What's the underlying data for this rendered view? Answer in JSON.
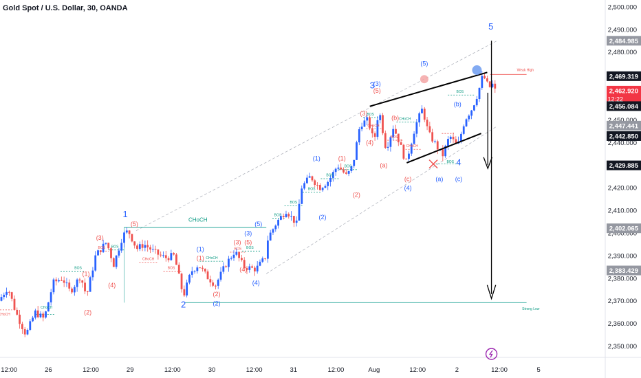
{
  "header": {
    "title": "Gold Spot / U.S. Dollar, 30, OANDA"
  },
  "chart_data": {
    "type": "candlestick",
    "ylim": [
      2345,
      2503
    ],
    "y_ticks": [
      2350,
      2360,
      2370,
      2380,
      2390,
      2400,
      2410,
      2420,
      2430,
      2440,
      2450,
      2460,
      2470,
      2480,
      2490,
      2500
    ],
    "y_tick_labels": [
      "2,350.000",
      "2,360.000",
      "2,370.000",
      "2,380.000",
      "2,390.000",
      "2,400.000",
      "2,410.000",
      "2,420.000",
      "2,430.000",
      "2,440.000",
      "2,450.000",
      "2,460.000",
      "2,470.000",
      "2,480.000",
      "2,490.000",
      "2,500.000"
    ],
    "x_tick_labels": [
      "12:00",
      "26",
      "12:00",
      "29",
      "12:00",
      "30",
      "12:00",
      "31",
      "12:00",
      "Aug",
      "12:00",
      "2",
      "12:00",
      "5"
    ],
    "x_tick_positions": [
      0.015,
      0.08,
      0.15,
      0.215,
      0.285,
      0.35,
      0.42,
      0.485,
      0.555,
      0.618,
      0.69,
      0.755,
      0.825,
      0.89
    ],
    "price_badges": [
      {
        "value": 2484.985,
        "label": "2,484.985",
        "style": "gray"
      },
      {
        "value": 2469.319,
        "label": "2,469.319",
        "style": "black"
      },
      {
        "value": 2462.92,
        "label": "2,462.920",
        "style": "red",
        "sub": "12:22"
      },
      {
        "value": 2456.084,
        "label": "2,456.084",
        "style": "black"
      },
      {
        "value": 2447.441,
        "label": "2,447.441",
        "style": "gray"
      },
      {
        "value": 2442.85,
        "label": "2,442.850",
        "style": "black"
      },
      {
        "value": 2429.885,
        "label": "2,429.885",
        "style": "black"
      },
      {
        "value": 2402.065,
        "label": "2,402.065",
        "style": "gray"
      },
      {
        "value": 2383.429,
        "label": "2,383.429",
        "style": "gray"
      }
    ],
    "wave_labels": [
      {
        "text": "1",
        "x": 0.207,
        "y": 2407,
        "color": "#2962ff",
        "size": 13
      },
      {
        "text": "2",
        "x": 0.303,
        "y": 2367,
        "color": "#2962ff",
        "size": 13
      },
      {
        "text": "3",
        "x": 0.615,
        "y": 2464,
        "color": "#2962ff",
        "size": 13
      },
      {
        "text": "4",
        "x": 0.758,
        "y": 2430,
        "color": "#2962ff",
        "size": 13
      },
      {
        "text": "5",
        "x": 0.811,
        "y": 2490,
        "color": "#2962ff",
        "size": 13
      },
      {
        "text": "(5)",
        "x": 0.222,
        "y": 2403,
        "color": "#ef5350",
        "size": 9
      },
      {
        "text": "(3)",
        "x": 0.165,
        "y": 2397,
        "color": "#ef5350",
        "size": 9
      },
      {
        "text": "(1)",
        "x": 0.142,
        "y": 2381,
        "color": "#ef5350",
        "size": 9
      },
      {
        "text": "(4)",
        "x": 0.185,
        "y": 2376,
        "color": "#ef5350",
        "size": 9
      },
      {
        "text": "(2)",
        "x": 0.145,
        "y": 2364,
        "color": "#ef5350",
        "size": 9
      },
      {
        "text": "(1)",
        "x": 0.331,
        "y": 2392,
        "color": "#2962ff",
        "size": 9
      },
      {
        "text": "(1)",
        "x": 0.331,
        "y": 2388,
        "color": "#ef5350",
        "size": 9
      },
      {
        "text": "(2)",
        "x": 0.358,
        "y": 2372,
        "color": "#ef5350",
        "size": 9
      },
      {
        "text": "(2)",
        "x": 0.358,
        "y": 2368,
        "color": "#2962ff",
        "size": 9
      },
      {
        "text": "(3)",
        "x": 0.392,
        "y": 2395,
        "color": "#ef5350",
        "size": 9
      },
      {
        "text": "(3)",
        "x": 0.41,
        "y": 2399,
        "color": "#2962ff",
        "size": 9
      },
      {
        "text": "(5)",
        "x": 0.41,
        "y": 2395,
        "color": "#ef5350",
        "size": 9
      },
      {
        "text": "(5)",
        "x": 0.427,
        "y": 2403,
        "color": "#2962ff",
        "size": 9
      },
      {
        "text": "(4)",
        "x": 0.402,
        "y": 2383,
        "color": "#ef5350",
        "size": 9
      },
      {
        "text": "(4)",
        "x": 0.423,
        "y": 2377,
        "color": "#2962ff",
        "size": 9
      },
      {
        "text": "(1)",
        "x": 0.523,
        "y": 2432,
        "color": "#2962ff",
        "size": 9
      },
      {
        "text": "(2)",
        "x": 0.533,
        "y": 2406,
        "color": "#2962ff",
        "size": 9
      },
      {
        "text": "(1)",
        "x": 0.565,
        "y": 2432,
        "color": "#ef5350",
        "size": 9
      },
      {
        "text": "(2)",
        "x": 0.589,
        "y": 2416,
        "color": "#ef5350",
        "size": 9
      },
      {
        "text": "(3)",
        "x": 0.601,
        "y": 2452,
        "color": "#ef5350",
        "size": 9
      },
      {
        "text": "(4)",
        "x": 0.611,
        "y": 2439,
        "color": "#ef5350",
        "size": 9
      },
      {
        "text": "(3)",
        "x": 0.623,
        "y": 2465,
        "color": "#2962ff",
        "size": 9
      },
      {
        "text": "(5)",
        "x": 0.623,
        "y": 2462,
        "color": "#ef5350",
        "size": 9
      },
      {
        "text": "(b)",
        "x": 0.653,
        "y": 2450,
        "color": "#ef5350",
        "size": 9
      },
      {
        "text": "(a)",
        "x": 0.634,
        "y": 2429,
        "color": "#ef5350",
        "size": 9
      },
      {
        "text": "(c)",
        "x": 0.674,
        "y": 2423,
        "color": "#ef5350",
        "size": 9
      },
      {
        "text": "(4)",
        "x": 0.674,
        "y": 2419,
        "color": "#2962ff",
        "size": 9
      },
      {
        "text": "(5)",
        "x": 0.701,
        "y": 2474,
        "color": "#2962ff",
        "size": 9
      },
      {
        "text": "(a)",
        "x": 0.726,
        "y": 2423,
        "color": "#2962ff",
        "size": 9
      },
      {
        "text": "(b)",
        "x": 0.756,
        "y": 2456,
        "color": "#2962ff",
        "size": 9
      },
      {
        "text": "(c)",
        "x": 0.758,
        "y": 2423,
        "color": "#2962ff",
        "size": 9
      }
    ],
    "annotations": [
      {
        "text": "CHoCH",
        "x": 0.327,
        "y": 2405,
        "color": "#089981",
        "size": 8
      },
      {
        "text": "CHoCH",
        "x": 0.077,
        "y": 2366.5,
        "color": "#089981",
        "size": 5
      },
      {
        "text": "CHoCH",
        "x": 0.007,
        "y": 2363.5,
        "color": "#ef5350",
        "size": 5
      },
      {
        "text": "BOS",
        "x": 0.129,
        "y": 2384,
        "color": "#089981",
        "size": 5
      },
      {
        "text": "BOS",
        "x": 0.19,
        "y": 2393.5,
        "color": "#089981",
        "size": 5
      },
      {
        "text": "BOS",
        "x": 0.168,
        "y": 2393,
        "color": "#ef5350",
        "size": 5
      },
      {
        "text": "CHoCH",
        "x": 0.245,
        "y": 2388,
        "color": "#ef5350",
        "size": 5
      },
      {
        "text": "BOS",
        "x": 0.283,
        "y": 2384,
        "color": "#ef5350",
        "size": 5
      },
      {
        "text": "CHoCH",
        "x": 0.35,
        "y": 2388.5,
        "color": "#089981",
        "size": 5
      },
      {
        "text": "BOS",
        "x": 0.393,
        "y": 2392.5,
        "color": "#ef5350",
        "size": 5
      },
      {
        "text": "BOS",
        "x": 0.413,
        "y": 2393,
        "color": "#089981",
        "size": 5
      },
      {
        "text": "BOS",
        "x": 0.459,
        "y": 2407.5,
        "color": "#089981",
        "size": 5
      },
      {
        "text": "BOS",
        "x": 0.485,
        "y": 2413,
        "color": "#089981",
        "size": 5
      },
      {
        "text": "BOS",
        "x": 0.515,
        "y": 2419,
        "color": "#089981",
        "size": 5
      },
      {
        "text": "BOS",
        "x": 0.545,
        "y": 2425,
        "color": "#089981",
        "size": 5
      },
      {
        "text": "BOS",
        "x": 0.575,
        "y": 2429,
        "color": "#089981",
        "size": 5
      },
      {
        "text": "BOS",
        "x": 0.612,
        "y": 2452,
        "color": "#089981",
        "size": 5
      },
      {
        "text": "CHoCH",
        "x": 0.617,
        "y": 2447,
        "color": "#ef5350",
        "size": 5
      },
      {
        "text": "CHoCH",
        "x": 0.669,
        "y": 2450,
        "color": "#089981",
        "size": 5
      },
      {
        "text": "BOS",
        "x": 0.651,
        "y": 2442,
        "color": "#ef5350",
        "size": 5
      },
      {
        "text": "CHoCH",
        "x": 0.681,
        "y": 2438,
        "color": "#ef5350",
        "size": 5
      },
      {
        "text": "BOS",
        "x": 0.744,
        "y": 2431,
        "color": "#089981",
        "size": 5
      },
      {
        "text": "BOS",
        "x": 0.76,
        "y": 2462,
        "color": "#089981",
        "size": 5
      },
      {
        "text": "Weak High",
        "x": 0.868,
        "y": 2471.5,
        "color": "#ef5350",
        "size": 5
      },
      {
        "text": "Strong Low",
        "x": 0.877,
        "y": 2366,
        "color": "#089981",
        "size": 5
      }
    ]
  }
}
